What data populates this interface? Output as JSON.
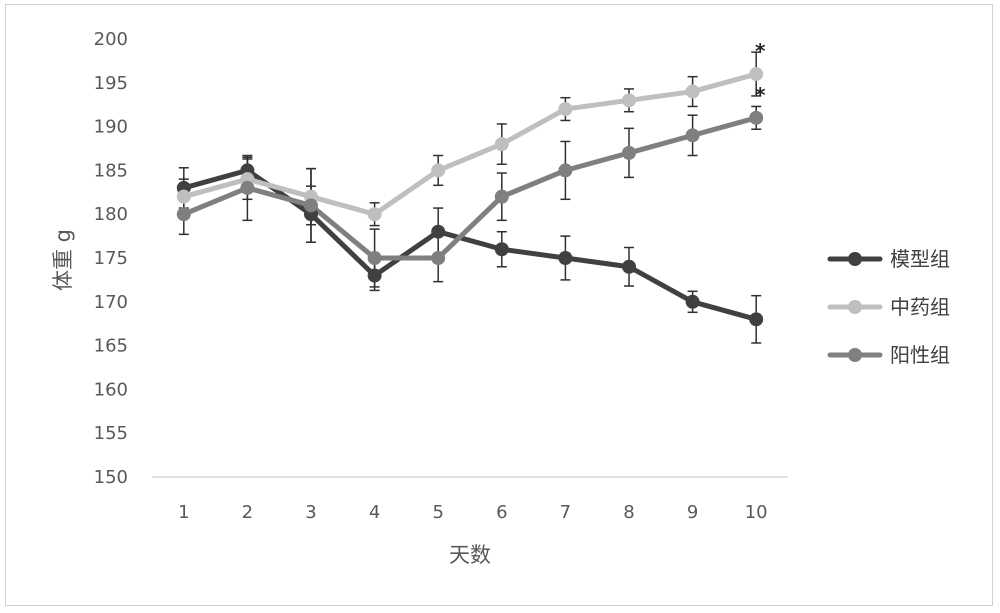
{
  "chart_data": {
    "type": "line",
    "xlabel": "天数",
    "ylabel": "体重 g",
    "categories": [
      "1",
      "2",
      "3",
      "4",
      "5",
      "6",
      "7",
      "8",
      "9",
      "10"
    ],
    "ylim": [
      150,
      200
    ],
    "y_ticks": [
      "150",
      "155",
      "160",
      "165",
      "170",
      "175",
      "180",
      "185",
      "190",
      "195",
      "200"
    ],
    "grid": false,
    "legend_position": "right",
    "series": [
      {
        "name": "模型组",
        "color": "#404040",
        "values": [
          183,
          185,
          180,
          173,
          178,
          176,
          175,
          174,
          170,
          168
        ],
        "errors": [
          2.3,
          1.5,
          3.2,
          1.7,
          2.7,
          2.0,
          2.5,
          2.2,
          1.2,
          2.7
        ]
      },
      {
        "name": "中药组",
        "color": "#bfbfbf",
        "values": [
          182,
          184,
          182,
          180,
          185,
          188,
          192,
          193,
          194,
          196
        ],
        "errors": [
          2.0,
          2.3,
          3.2,
          1.3,
          1.7,
          2.3,
          1.3,
          1.3,
          1.7,
          2.5
        ]
      },
      {
        "name": "阳性组",
        "color": "#7f7f7f",
        "values": [
          180,
          183,
          181,
          175,
          175,
          182,
          185,
          187,
          189,
          191
        ],
        "errors": [
          2.3,
          3.7,
          4.2,
          3.3,
          2.7,
          2.7,
          3.3,
          2.8,
          2.3,
          1.3
        ]
      }
    ],
    "annotations": [
      {
        "text": "*",
        "x": "10",
        "y": 196
      },
      {
        "text": "*",
        "x": "10",
        "y": 191
      }
    ]
  }
}
